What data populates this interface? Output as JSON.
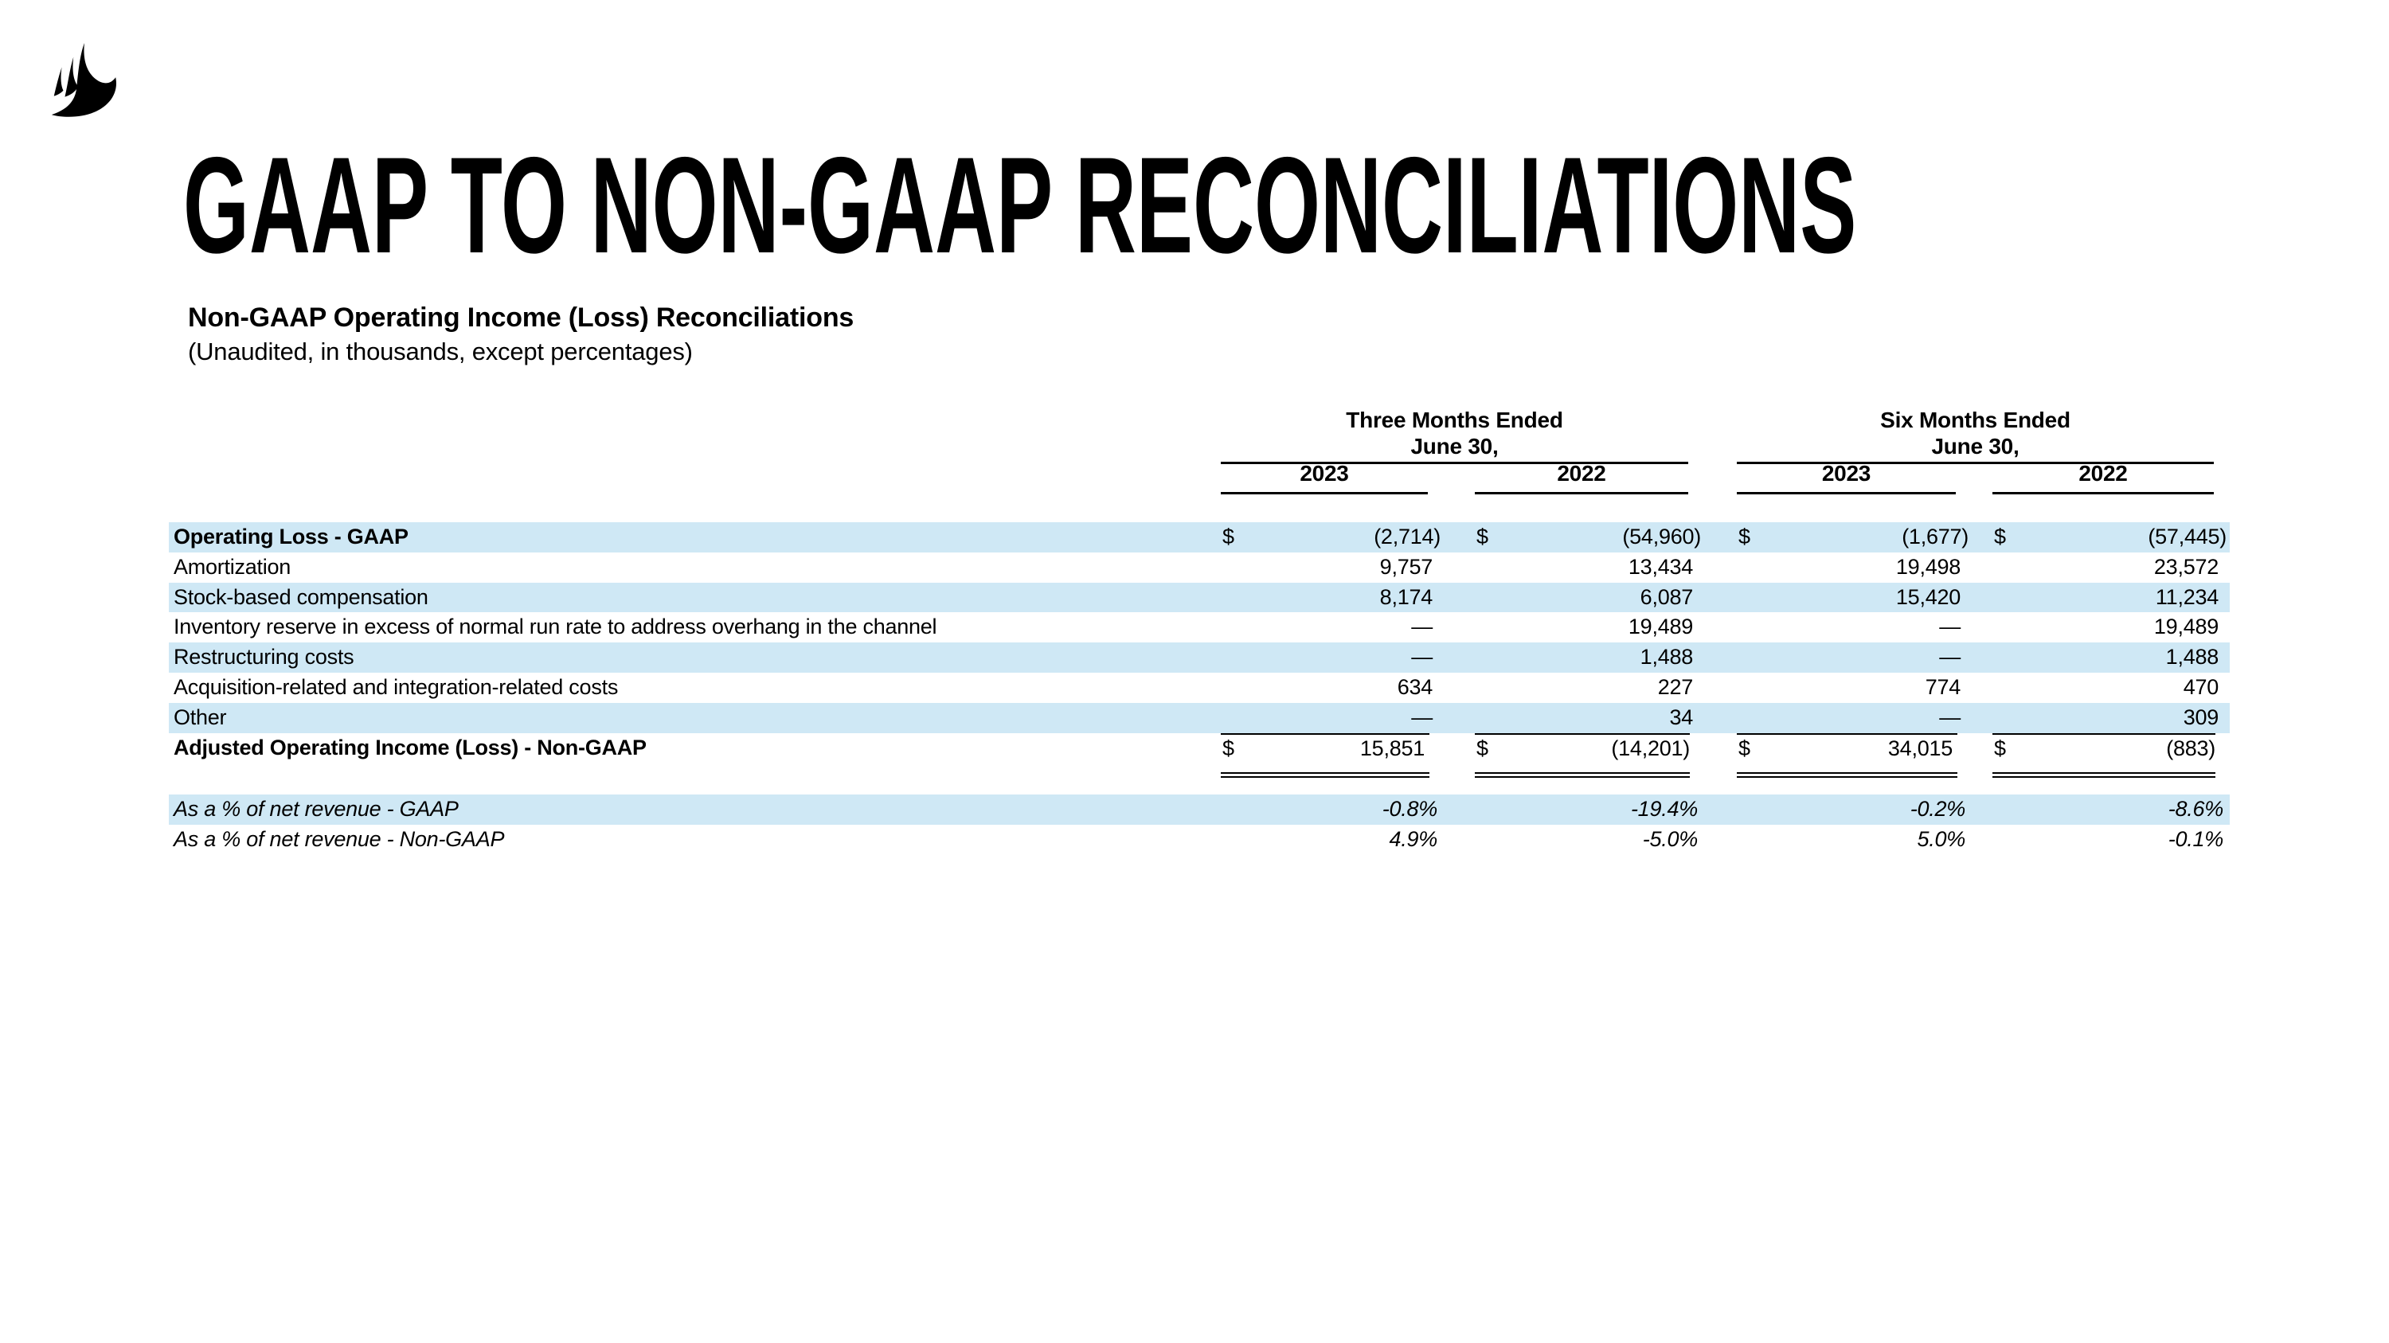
{
  "title": "GAAP TO NON-GAAP RECONCILIATIONS",
  "subtitle": {
    "heading": "Non-GAAP Operating Income (Loss) Reconciliations",
    "note": "(Unaudited, in thousands, except percentages)"
  },
  "icons": {
    "logo": "corsair-sails-logo"
  },
  "colors": {
    "background": "#ffffff",
    "text": "#000000",
    "row_highlight": "#cfe8f5"
  },
  "table": {
    "groups": [
      {
        "period": "Three Months Ended",
        "date": "June 30,",
        "years": [
          "2023",
          "2022"
        ]
      },
      {
        "period": "Six Months Ended",
        "date": "June 30,",
        "years": [
          "2023",
          "2022"
        ]
      }
    ],
    "rows": [
      {
        "label": "Operating Loss - GAAP",
        "bold": true,
        "dollar": true,
        "shaded": true,
        "values": [
          "(2,714)",
          "(54,960)",
          "(1,677)",
          "(57,445)"
        ]
      },
      {
        "label": "Amortization",
        "bold": false,
        "dollar": false,
        "shaded": false,
        "values": [
          "9,757",
          "13,434",
          "19,498",
          "23,572"
        ]
      },
      {
        "label": "Stock-based compensation",
        "bold": false,
        "dollar": false,
        "shaded": true,
        "values": [
          "8,174",
          "6,087",
          "15,420",
          "11,234"
        ]
      },
      {
        "label": "Inventory reserve in excess of normal run rate to address overhang in the channel",
        "bold": false,
        "dollar": false,
        "shaded": false,
        "values": [
          "—",
          "19,489",
          "—",
          "19,489"
        ]
      },
      {
        "label": "Restructuring costs",
        "bold": false,
        "dollar": false,
        "shaded": true,
        "values": [
          "—",
          "1,488",
          "—",
          "1,488"
        ]
      },
      {
        "label": "Acquisition-related and integration-related costs",
        "bold": false,
        "dollar": false,
        "shaded": false,
        "values": [
          "634",
          "227",
          "774",
          "470"
        ]
      },
      {
        "label": "Other",
        "bold": false,
        "dollar": false,
        "shaded": true,
        "values": [
          "—",
          "34",
          "—",
          "309"
        ]
      },
      {
        "label": "Adjusted Operating Income (Loss) - Non-GAAP",
        "bold": true,
        "dollar": true,
        "shaded": false,
        "total": true,
        "values": [
          "15,851",
          "(14,201)",
          "34,015",
          "(883)"
        ]
      }
    ],
    "percent_rows": [
      {
        "label": "As a % of net revenue - GAAP",
        "shaded": true,
        "values": [
          "-0.8%",
          "-19.4%",
          "-0.2%",
          "-8.6%"
        ]
      },
      {
        "label": "As a % of net revenue - Non-GAAP",
        "shaded": false,
        "values": [
          "4.9%",
          "-5.0%",
          "5.0%",
          "-0.1%"
        ]
      }
    ]
  }
}
